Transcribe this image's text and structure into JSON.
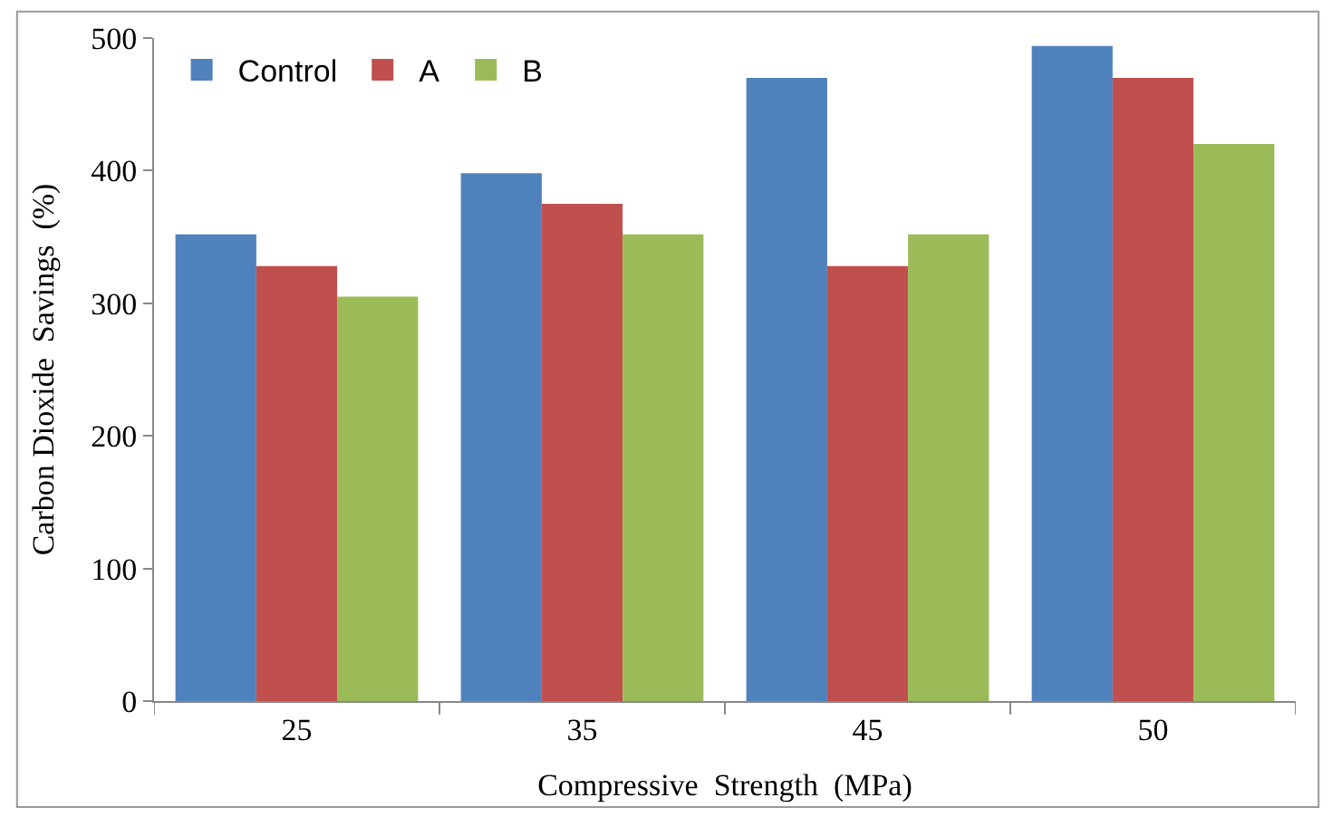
{
  "chart_data": {
    "type": "bar",
    "xlabel": "Compressive  Strength  (MPa)",
    "ylabel": "Carbon Dioxide  Savings  (%)",
    "categories": [
      "25",
      "35",
      "45",
      "50"
    ],
    "series": [
      {
        "name": "Control",
        "color": "#4f81bd",
        "values": [
          352,
          398,
          470,
          494
        ]
      },
      {
        "name": "A",
        "color": "#c0504d",
        "values": [
          328,
          375,
          328,
          470
        ]
      },
      {
        "name": "B",
        "color": "#9bbb59",
        "values": [
          305,
          352,
          352,
          420
        ]
      }
    ],
    "ylim": [
      0,
      500
    ],
    "yticks": [
      0,
      100,
      200,
      300,
      400,
      500
    ],
    "legend": "top left"
  }
}
